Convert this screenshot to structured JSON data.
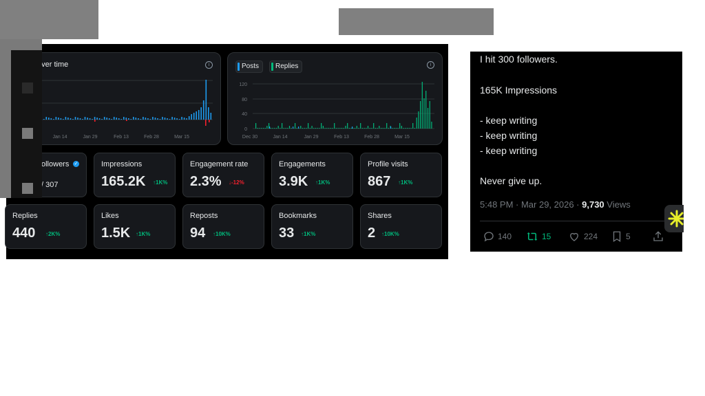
{
  "dashboard": {
    "chart1": {
      "title": "over time",
      "x_ticks": [
        "Jan 14",
        "Jan 29",
        "Feb 13",
        "Feb 28",
        "Mar 15"
      ],
      "colors": {
        "positive": "#1d9bf0",
        "negative": "#f4212e"
      }
    },
    "chart2": {
      "legend": [
        {
          "label": "Posts",
          "color": "#1d9bf0"
        },
        {
          "label": "Replies",
          "color": "#00ba7c"
        }
      ],
      "y_ticks": [
        "120",
        "80",
        "40",
        "0"
      ],
      "x_ticks": [
        "Dec 30",
        "Jan 14",
        "Jan 29",
        "Feb 13",
        "Feb 28",
        "Mar 15"
      ]
    },
    "cards": [
      {
        "label": "ollowers",
        "value": "/ 307",
        "change": "",
        "direction": "none"
      },
      {
        "label": "Impressions",
        "value": "165.2K",
        "change": "↑1K%",
        "direction": "up"
      },
      {
        "label": "Engagement rate",
        "value": "2.3%",
        "change": "↓-12%",
        "direction": "down"
      },
      {
        "label": "Engagements",
        "value": "3.9K",
        "change": "↑1K%",
        "direction": "up"
      },
      {
        "label": "Profile visits",
        "value": "867",
        "change": "↑1K%",
        "direction": "up"
      },
      {
        "label": "Replies",
        "value": "440",
        "change": "↑2K%",
        "direction": "up"
      },
      {
        "label": "Likes",
        "value": "1.5K",
        "change": "↑1K%",
        "direction": "up"
      },
      {
        "label": "Reposts",
        "value": "94",
        "change": "↑10K%",
        "direction": "up"
      },
      {
        "label": "Bookmarks",
        "value": "33",
        "change": "↑1K%",
        "direction": "up"
      },
      {
        "label": "Shares",
        "value": "2",
        "change": "↑10K%",
        "direction": "up"
      }
    ]
  },
  "tweet": {
    "line1": "I hit 300 followers.",
    "line2": "165K Impressions",
    "line3": "- keep writing",
    "line4": "- keep writing",
    "line5": "- keep writing",
    "line6": "Never give up.",
    "timestamp": "5:48 PM · Mar 29, 2026 · ",
    "views_count": "9,730",
    "views_label": " Views",
    "actions": {
      "replies": "140",
      "reposts": "15",
      "likes": "224",
      "bookmarks": "5"
    },
    "colors": {
      "repost": "#00ba7c",
      "muted": "#71767b"
    }
  },
  "badge_icon": "asterisk-icon"
}
